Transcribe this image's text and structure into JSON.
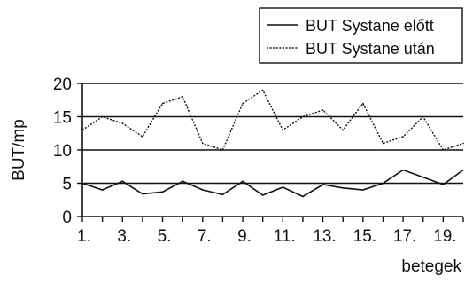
{
  "chart_data": {
    "type": "line",
    "title": "",
    "xlabel": "betegek",
    "ylabel": "BUT/mp",
    "ylim": [
      0,
      20
    ],
    "yticks": [
      0,
      5,
      10,
      15,
      20
    ],
    "grid": "horizontal",
    "legend_position": "top-right",
    "x": [
      1,
      2,
      3,
      4,
      5,
      6,
      7,
      8,
      9,
      10,
      11,
      12,
      13,
      14,
      15,
      16,
      17,
      18,
      19,
      20
    ],
    "xtick_labels": [
      "1.",
      "3.",
      "5.",
      "7.",
      "9.",
      "11.",
      "13.",
      "15.",
      "17.",
      "19."
    ],
    "xtick_values": [
      1,
      3,
      5,
      7,
      9,
      11,
      13,
      15,
      17,
      19
    ],
    "series": [
      {
        "name": "BUT Systane előtt",
        "style": "solid",
        "values": [
          5,
          4,
          5.3,
          3.4,
          3.7,
          5.3,
          4,
          3.3,
          5.3,
          3.2,
          4.4,
          3,
          4.8,
          4.3,
          4,
          5,
          7,
          5.9,
          4.8,
          7
        ]
      },
      {
        "name": "BUT Systane után",
        "style": "dotted",
        "values": [
          13,
          15,
          14,
          12,
          17,
          18,
          11,
          10,
          17,
          19,
          13,
          15,
          16,
          13,
          17,
          11,
          12,
          15,
          10,
          11
        ]
      }
    ],
    "colors": {
      "line": "#111111",
      "grid": "#111111"
    }
  }
}
